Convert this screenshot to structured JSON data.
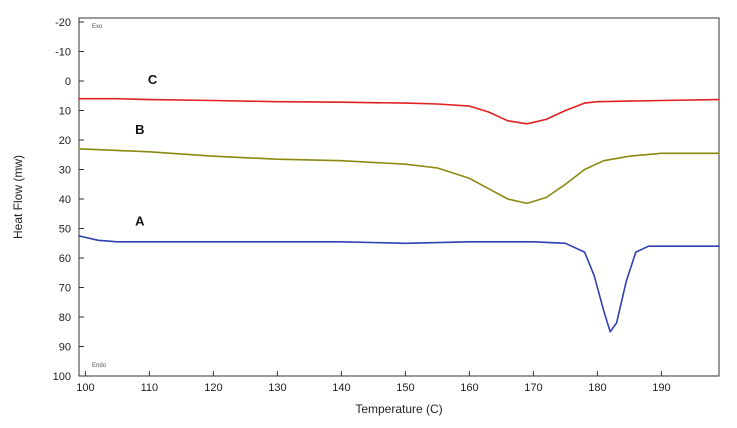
{
  "chart_data": {
    "type": "line",
    "xlabel": "Temperature (C)",
    "ylabel": "Heat Flow (mw)",
    "xlim": [
      99,
      199
    ],
    "ylim": [
      -20,
      100
    ],
    "y_inverted": true,
    "x_ticks": [
      "100",
      "110",
      "120",
      "130",
      "140",
      "150",
      "160",
      "170",
      "180",
      "190"
    ],
    "y_ticks": [
      "-20",
      "-10",
      "0",
      "10",
      "20",
      "30",
      "40",
      "50",
      "60",
      "70",
      "80",
      "90",
      "100"
    ],
    "corner_labels": {
      "top": "Exo",
      "bottom": "Endo"
    },
    "grid": false,
    "series": [
      {
        "name": "C",
        "color": "#e02020",
        "x": [
          99,
          105,
          110,
          120,
          130,
          140,
          150,
          155,
          160,
          163,
          166,
          169,
          172,
          175,
          178,
          180,
          185,
          190,
          199
        ],
        "y": [
          6,
          6,
          6.3,
          6.6,
          7,
          7.2,
          7.5,
          7.8,
          8.5,
          10.5,
          13.5,
          14.5,
          13,
          10,
          7.5,
          7,
          6.8,
          6.6,
          6.3
        ]
      },
      {
        "name": "B",
        "color": "#8a8a10",
        "x": [
          99,
          110,
          120,
          130,
          140,
          150,
          155,
          160,
          163,
          166,
          169,
          172,
          175,
          178,
          181,
          185,
          190,
          199
        ],
        "y": [
          23,
          24,
          25.5,
          26.5,
          27,
          28.2,
          29.5,
          33,
          36.5,
          40,
          41.5,
          39.5,
          35,
          30,
          27,
          25.5,
          24.5,
          24.5
        ]
      },
      {
        "name": "A",
        "color": "#3040b0",
        "x": [
          99,
          102,
          105,
          110,
          120,
          130,
          140,
          150,
          160,
          170,
          175,
          178,
          179.5,
          181,
          182,
          183,
          184.5,
          186,
          188,
          190,
          199
        ],
        "y": [
          52.5,
          54,
          54.5,
          54.5,
          54.5,
          54.5,
          54.5,
          55,
          54.5,
          54.5,
          55,
          58,
          66,
          78,
          85,
          82,
          68,
          58,
          56,
          56,
          56
        ]
      }
    ],
    "series_label_positions": {
      "C": {
        "x": 110.5,
        "y": 1
      },
      "B": {
        "x": 108.5,
        "y": 18
      },
      "A": {
        "x": 108.5,
        "y": 49
      }
    }
  }
}
